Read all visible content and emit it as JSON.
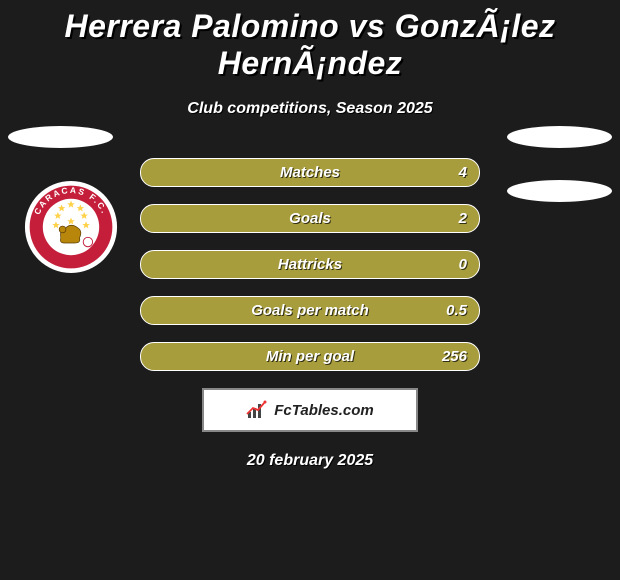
{
  "title": "Herrera Palomino vs GonzÃ¡lez HernÃ¡ndez",
  "subtitle": "Club competitions, Season 2025",
  "date": "20 february 2025",
  "bar_color": "#a89d3c",
  "stats": [
    {
      "label": "Matches",
      "right_value": "4",
      "right_pct": 100
    },
    {
      "label": "Goals",
      "right_value": "2",
      "right_pct": 100
    },
    {
      "label": "Hattricks",
      "right_value": "0",
      "right_pct": 100
    },
    {
      "label": "Goals per match",
      "right_value": "0.5",
      "right_pct": 100
    },
    {
      "label": "Min per goal",
      "right_value": "256",
      "right_pct": 100
    }
  ],
  "logo_text": "FcTables.com",
  "club": {
    "name": "CARACAS F.C.",
    "outer_color": "#ffffff",
    "ring_color": "#c41e3a",
    "inner_color": "#ffffff",
    "text_color": "#c41e3a",
    "stars_count": 8,
    "star_color": "#ffd24a"
  }
}
